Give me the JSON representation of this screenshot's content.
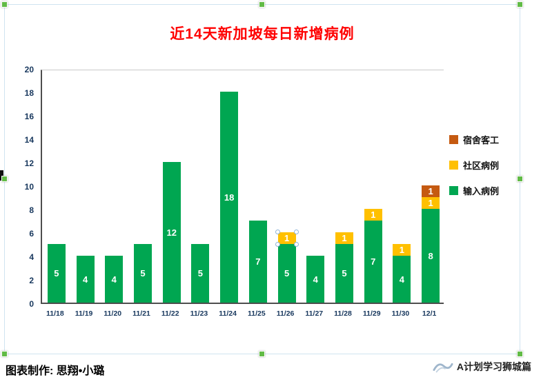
{
  "chart_data": {
    "type": "bar",
    "variant": "stacked",
    "title": "近14天新加坡每日新增病例",
    "categories": [
      "11/18",
      "11/19",
      "11/20",
      "11/21",
      "11/22",
      "11/23",
      "11/24",
      "11/25",
      "11/26",
      "11/27",
      "11/28",
      "11/29",
      "11/30",
      "12/1"
    ],
    "series": [
      {
        "name": "输入病例",
        "color": "#00A651",
        "values": [
          5,
          4,
          4,
          5,
          12,
          5,
          18,
          7,
          5,
          4,
          5,
          7,
          4,
          8
        ]
      },
      {
        "name": "社区病例",
        "color": "#FFC000",
        "values": [
          0,
          0,
          0,
          0,
          0,
          0,
          0,
          0,
          1,
          0,
          1,
          1,
          1,
          1
        ]
      },
      {
        "name": "宿舍客工",
        "color": "#C55A11",
        "values": [
          0,
          0,
          0,
          0,
          0,
          0,
          0,
          0,
          0,
          0,
          0,
          0,
          0,
          1
        ]
      }
    ],
    "legend": [
      {
        "label": "宿舍客工",
        "color": "#C55A11"
      },
      {
        "label": "社区病例",
        "color": "#FFC000"
      },
      {
        "label": "输入病例",
        "color": "#00A651"
      }
    ],
    "ylim": [
      0,
      20
    ],
    "yticks": [
      0,
      2,
      4,
      6,
      8,
      10,
      12,
      14,
      16,
      18,
      20
    ],
    "xlabel": "",
    "ylabel": "",
    "grid": "top-line-only",
    "legend_position": "right",
    "data_labels": "center-white-bold",
    "selection": {
      "category": "11/26",
      "series": "社区病例"
    }
  },
  "footer": {
    "credit": "图表制作: 思翔•小璐",
    "watermark": "A计划学习狮城篇"
  },
  "colors": {
    "title": "#FF0000",
    "axis_text": "#17375D",
    "selection_handle": "#62BB46"
  }
}
